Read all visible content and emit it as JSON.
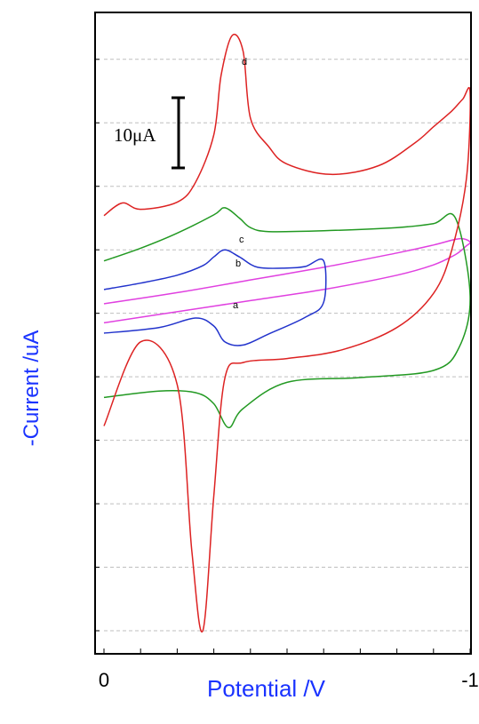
{
  "chart_data": {
    "type": "line",
    "xlabel": "Potential /V",
    "ylabel": "-Current /uA",
    "xlim": [
      0,
      -1
    ],
    "x_ticks": [
      0,
      -1
    ],
    "x_tick_labels": [
      "0",
      "-1"
    ],
    "ylim": [
      -40,
      35
    ],
    "grid": "horizontal dashed",
    "scale_bar": {
      "label": "10μA",
      "value": 10
    },
    "colors": {
      "a": "#e040e0",
      "b": "#2233cc",
      "c": "#229922",
      "d": "#dd2222",
      "axis": "#000000",
      "grid": "#bfbfbf",
      "label": "#1a33ff"
    },
    "series": [
      {
        "name": "a",
        "color": "#e040e0",
        "x": [
          0,
          -0.2,
          -0.4,
          -0.6,
          -0.8,
          -0.9,
          -0.96,
          -0.99,
          -1.0,
          -0.97,
          -0.9,
          -0.8,
          -0.6,
          -0.4,
          -0.2,
          0
        ],
        "y": [
          -1.2,
          0.2,
          1.6,
          3.0,
          4.8,
          6.1,
          7.4,
          8.5,
          9.0,
          9.4,
          8.6,
          7.6,
          5.8,
          4.2,
          2.6,
          1.2
        ]
      },
      {
        "name": "b",
        "color": "#2233cc",
        "x": [
          0,
          -0.15,
          -0.25,
          -0.3,
          -0.33,
          -0.38,
          -0.45,
          -0.55,
          -0.6,
          -0.6,
          -0.55,
          -0.5,
          -0.42,
          -0.37,
          -0.33,
          -0.3,
          -0.27,
          -0.2,
          -0.1,
          0
        ],
        "y": [
          -2.5,
          -1.8,
          -0.6,
          -1.6,
          -3.6,
          -4.0,
          -2.6,
          -0.5,
          1.4,
          6.6,
          5.9,
          5.7,
          5.8,
          7.1,
          8.0,
          7.1,
          6.0,
          4.8,
          3.8,
          3.0
        ]
      },
      {
        "name": "c",
        "color": "#229922",
        "x": [
          0,
          -0.15,
          -0.25,
          -0.3,
          -0.34,
          -0.38,
          -0.5,
          -0.7,
          -0.9,
          -0.97,
          -1.0,
          -0.96,
          -0.9,
          -0.8,
          -0.6,
          -0.45,
          -0.4,
          -0.37,
          -0.33,
          -0.3,
          -0.2,
          -0.1,
          0
        ],
        "y": [
          -10.6,
          -9.8,
          -10.0,
          -11.4,
          -14.4,
          -12.0,
          -8.7,
          -8.1,
          -7.2,
          -4.3,
          2.2,
          12.0,
          11.3,
          10.8,
          10.4,
          10.3,
          10.8,
          12.0,
          13.3,
          12.4,
          10.1,
          8.2,
          6.6
        ]
      },
      {
        "name": "d",
        "color": "#dd2222",
        "x": [
          0,
          -0.1,
          -0.2,
          -0.24,
          -0.27,
          -0.3,
          -0.33,
          -0.38,
          -0.5,
          -0.65,
          -0.8,
          -0.9,
          -0.95,
          -0.99,
          -1.0,
          -0.98,
          -0.95,
          -0.9,
          -0.85,
          -0.75,
          -0.62,
          -0.5,
          -0.45,
          -0.4,
          -0.38,
          -0.35,
          -0.32,
          -0.3,
          -0.25,
          -0.2,
          -0.1,
          -0.05,
          0
        ],
        "y": [
          -14.2,
          -3.6,
          -9.0,
          -30.0,
          -40.0,
          -23.0,
          -8.2,
          -6.2,
          -5.7,
          -4.6,
          -1.8,
          2.5,
          8.0,
          17.0,
          27.8,
          27.0,
          25.5,
          23.5,
          21.5,
          18.6,
          17.5,
          18.8,
          21.0,
          24.6,
          33.0,
          35.0,
          30.0,
          22.5,
          16.5,
          14.0,
          13.1,
          13.9,
          12.3
        ]
      }
    ],
    "annotations": [
      "a",
      "b",
      "c",
      "d"
    ]
  }
}
